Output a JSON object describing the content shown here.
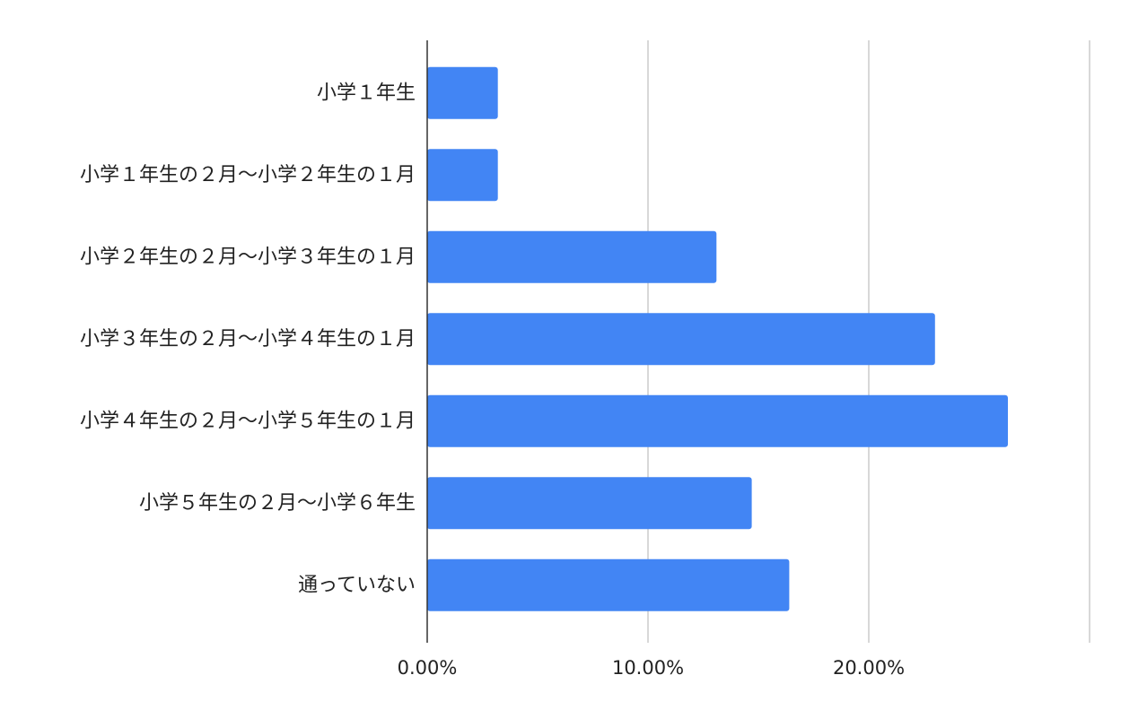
{
  "chart_data": {
    "type": "bar",
    "orientation": "horizontal",
    "categories": [
      "小学１年生",
      "小学１年生の２月〜小学２年生の１月",
      "小学２年生の２月〜小学３年生の１月",
      "小学３年生の２月〜小学４年生の１月",
      "小学４年生の２月〜小学５年生の１月",
      "小学５年生の２月〜小学６年生",
      "通っていない"
    ],
    "values": [
      3.2,
      3.2,
      13.1,
      23.0,
      26.3,
      14.7,
      16.4
    ],
    "value_unit": "%",
    "xlim": [
      0,
      30
    ],
    "x_ticks": [
      0,
      10,
      20,
      30
    ],
    "x_tick_labels": [
      "0.00%",
      "10.00%",
      "20.00%",
      ""
    ],
    "grid": true,
    "bar_color": "#4285f4"
  }
}
